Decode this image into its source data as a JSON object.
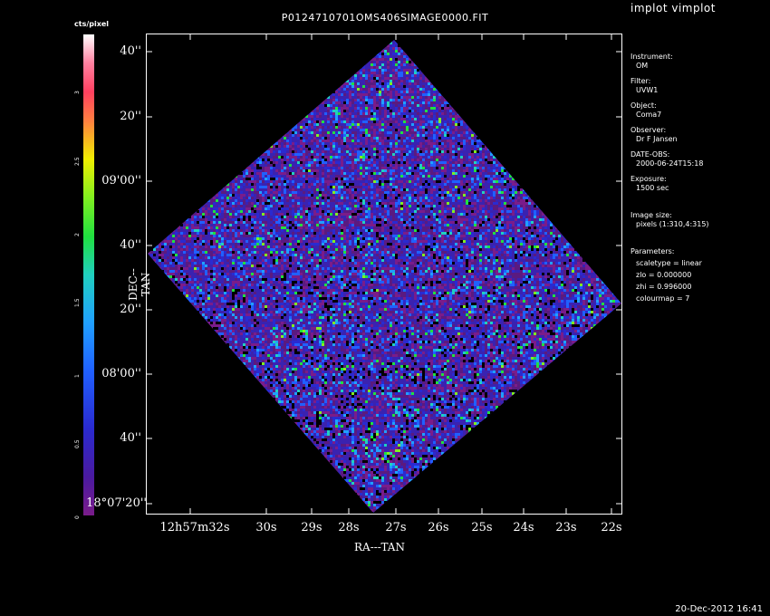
{
  "window": {
    "title": "P0124710701OMS406SIMAGE0000.FIT",
    "brand": "implot vimplot",
    "timestamp": "20-Dec-2012 16:41"
  },
  "colorbar": {
    "label": "cts/pixel",
    "ticks": [
      "0",
      "0.5",
      "1",
      "1.5",
      "2",
      "2.5",
      "3"
    ],
    "range": [
      0,
      3.4
    ]
  },
  "sidebar": {
    "instrument_key": "Instrument:",
    "instrument": "OM",
    "filter_key": "Filter:",
    "filter": "UVW1",
    "object_key": "Object:",
    "object": "Coma7",
    "observer_key": "Observer:",
    "observer": "Dr F Jansen",
    "date_key": "DATE-OBS:",
    "date": "2000-06-24T15:18",
    "exposure_key": "Exposure:",
    "exposure": "1500 sec",
    "imagesize_key": "Image size:",
    "imagesize": "pixels (1:310,4:315)",
    "params_key": "Parameters:",
    "scaletype": "scaletype = linear",
    "zlo": "zlo = 0.000000",
    "zhi": "zhi = 0.996000",
    "colourmap": "colourmap =   7"
  },
  "chart_data": {
    "type": "heatmap",
    "title": "P0124710701OMS406SIMAGE0000.FIT",
    "xlabel": "RA---TAN",
    "ylabel": "DEC--TAN",
    "y_ticks": [
      "40''",
      "20''",
      "09'00''",
      "40''",
      "20''",
      "08'00''",
      "40''",
      "18°07'20''"
    ],
    "x_ticks": [
      "12h57m32s",
      "30s",
      "29s",
      "28s",
      "27s",
      "26s",
      "25s",
      "24s",
      "23s",
      "22s"
    ],
    "zlo": 0.0,
    "zhi": 0.996,
    "colourmap": 7,
    "grid": false,
    "note_region": "rotated square footprint"
  }
}
